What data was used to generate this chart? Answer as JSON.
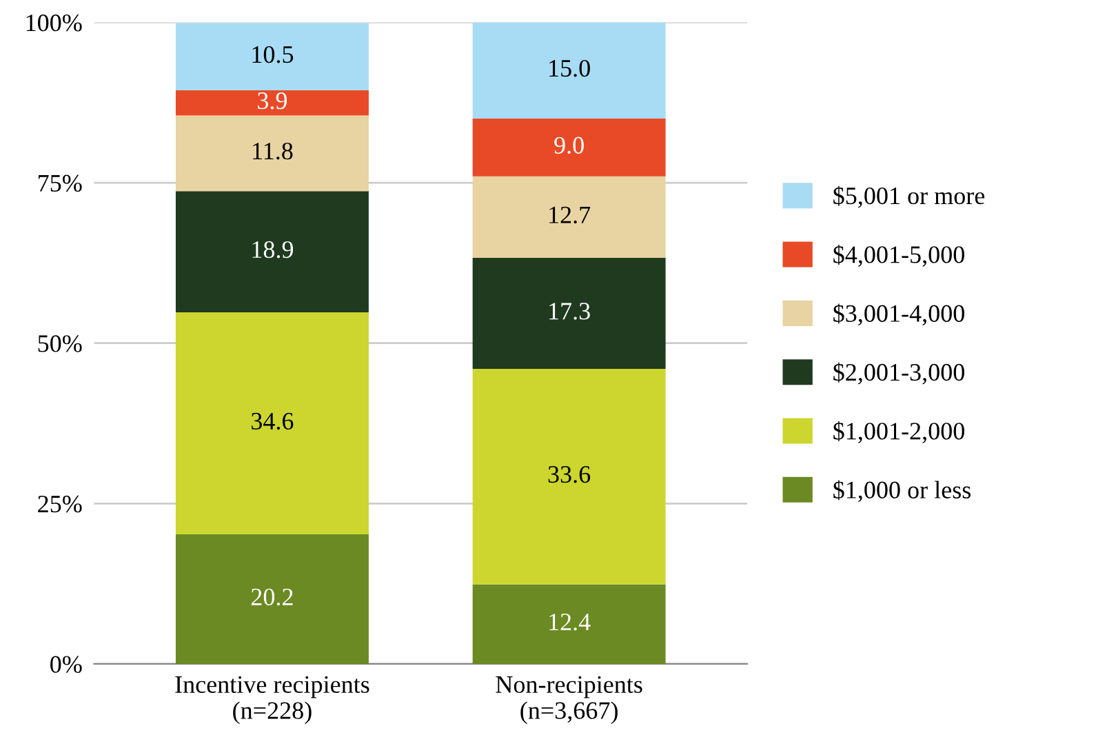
{
  "chart_data": {
    "type": "bar",
    "stacked": true,
    "categories": [
      "Incentive recipients\n(n=228)",
      "Non-recipients\n(n=3,667)"
    ],
    "series": [
      {
        "name": "$1,000 or less",
        "color": "#6b8a23",
        "values": [
          20.2,
          12.4
        ],
        "value_labels": [
          "20.2",
          "12.4"
        ]
      },
      {
        "name": "$1,001-2,000",
        "color": "#ccd62f",
        "values": [
          34.6,
          33.6
        ],
        "value_labels": [
          "34.6",
          "33.6"
        ]
      },
      {
        "name": "$2,001-3,000",
        "color": "#1f3a1f",
        "values": [
          18.9,
          17.3
        ],
        "value_labels": [
          "18.9",
          "17.3"
        ]
      },
      {
        "name": "$3,001-4,000",
        "color": "#e8d3a2",
        "values": [
          11.8,
          12.7
        ],
        "value_labels": [
          "11.8",
          "12.7"
        ]
      },
      {
        "name": "$4,001-5,000",
        "color": "#e84a27",
        "values": [
          3.9,
          9.0
        ],
        "value_labels": [
          "3.9",
          "9.0"
        ]
      },
      {
        "name": "$5,001 or more",
        "color": "#a8dcf5",
        "values": [
          10.5,
          15.0
        ],
        "value_labels": [
          "10.5",
          "15.0"
        ]
      }
    ],
    "ylim": [
      0,
      100
    ],
    "yticks": [
      {
        "value": 0,
        "label": "0%"
      },
      {
        "value": 25,
        "label": "25%"
      },
      {
        "value": 50,
        "label": "50%"
      },
      {
        "value": 75,
        "label": "75%"
      },
      {
        "value": 100,
        "label": "100%"
      }
    ],
    "grid": "y",
    "legend": "right"
  }
}
